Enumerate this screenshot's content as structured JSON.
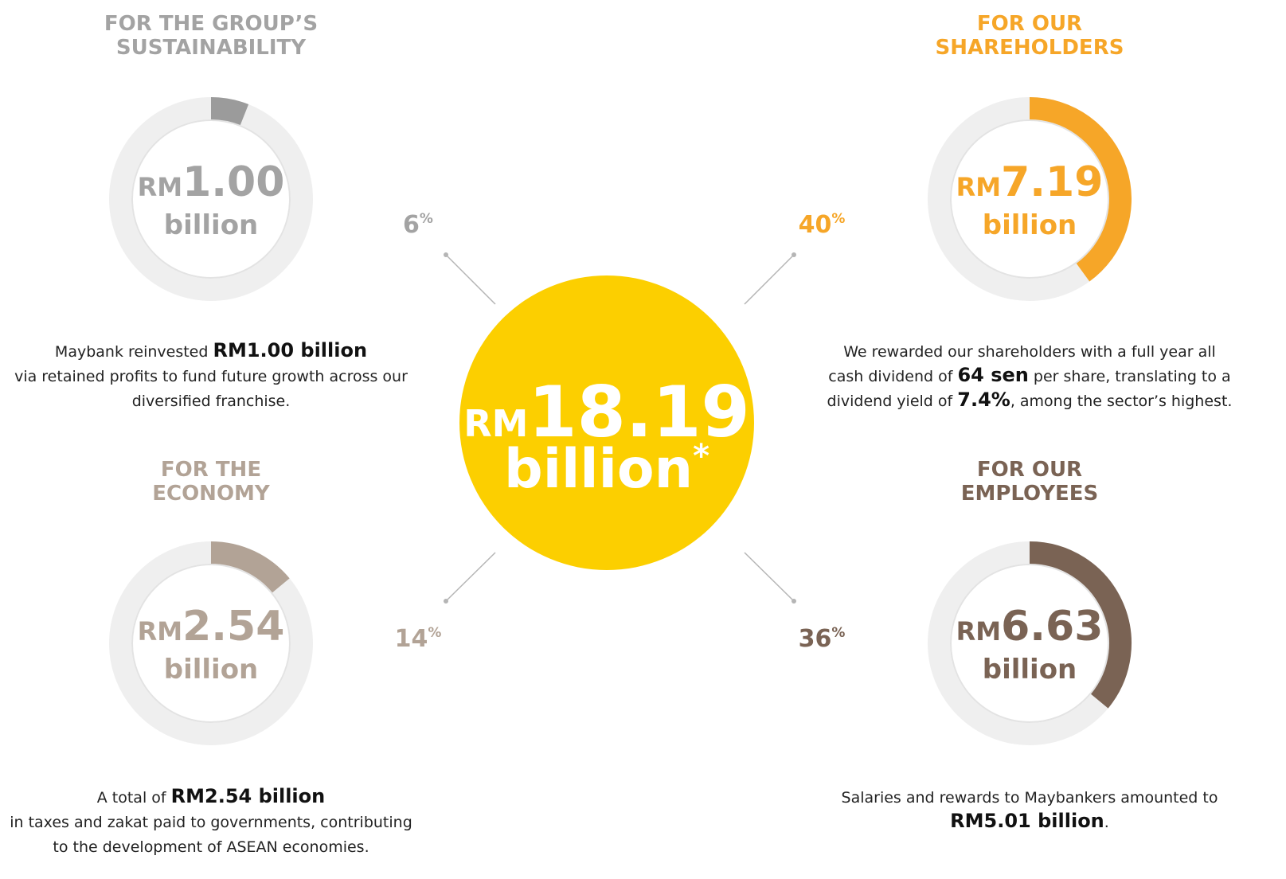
{
  "center": {
    "prefix": "RM",
    "amount": "18.19",
    "unit": "billion",
    "note": "*"
  },
  "percent_symbol": "%",
  "segments": [
    {
      "title": [
        "FOR THE GROUP’S",
        "SUSTAINABILITY"
      ],
      "percent": 6,
      "prefix": "RM",
      "amount": "1.00",
      "unit": "billion",
      "color": "#9b9b9b",
      "text_color": "#a3a3a3",
      "description": [
        [
          {
            "text": "Maybank reinvested "
          },
          {
            "text": "RM1.00 billion",
            "bold": true
          }
        ],
        [
          {
            "text": "via retained profits to fund future growth across our"
          }
        ],
        [
          {
            "text": "diversified franchise."
          }
        ]
      ]
    },
    {
      "title": [
        "FOR OUR",
        "SHAREHOLDERS"
      ],
      "percent": 40,
      "prefix": "RM",
      "amount": "7.19",
      "unit": "billion",
      "color": "#f6a628",
      "text_color": "#f6a628",
      "description": [
        [
          {
            "text": "We rewarded our shareholders with a full year all"
          }
        ],
        [
          {
            "text": "cash dividend of "
          },
          {
            "text": "64 sen",
            "bold": true
          },
          {
            "text": " per share, translating to a"
          }
        ],
        [
          {
            "text": "dividend yield of "
          },
          {
            "text": "7.4%",
            "bold": true
          },
          {
            "text": ", among the sector’s highest."
          }
        ]
      ]
    },
    {
      "title": [
        "FOR THE",
        "ECONOMY"
      ],
      "percent": 14,
      "prefix": "RM",
      "amount": "2.54",
      "unit": "billion",
      "color": "#b2a396",
      "text_color": "#b2a396",
      "description": [
        [
          {
            "text": "A total of "
          },
          {
            "text": "RM2.54 billion",
            "bold": true
          }
        ],
        [
          {
            "text": "in taxes and zakat paid to governments, contributing"
          }
        ],
        [
          {
            "text": "to the development of ASEAN economies."
          }
        ]
      ]
    },
    {
      "title": [
        "FOR OUR",
        "EMPLOYEES"
      ],
      "percent": 36,
      "prefix": "RM",
      "amount": "6.63",
      "unit": "billion",
      "color": "#7a6354",
      "text_color": "#7a6354",
      "description": [
        [
          {
            "text": "Salaries and rewards to Maybankers amounted to"
          }
        ],
        [
          {
            "text": "RM5.01 billion",
            "bold": true
          },
          {
            "text": "."
          }
        ]
      ]
    }
  ]
}
